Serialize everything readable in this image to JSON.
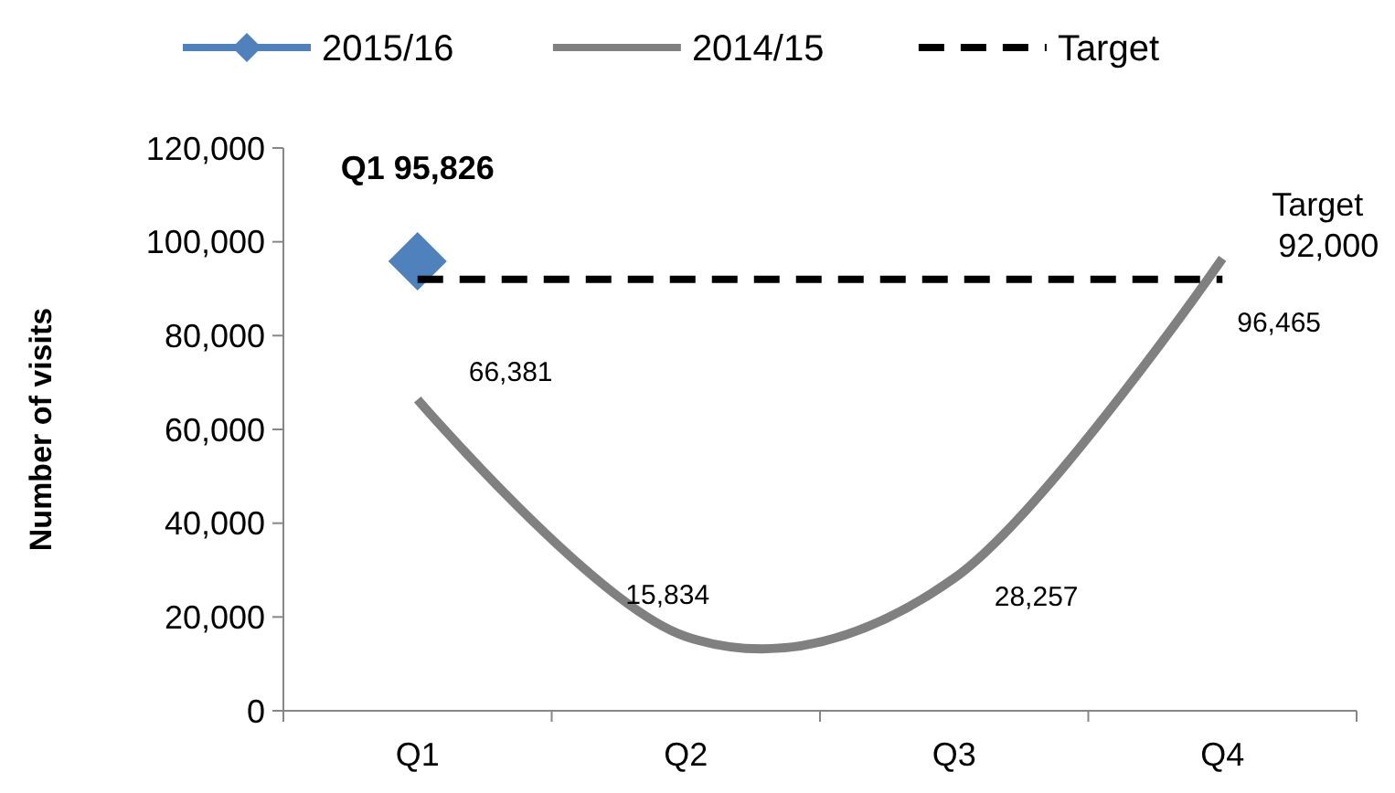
{
  "chart_data": {
    "type": "line",
    "ylabel": "Number of visits",
    "categories": [
      "Q1",
      "Q2",
      "Q3",
      "Q4"
    ],
    "ylim": [
      0,
      120000
    ],
    "yticks": [
      {
        "value": 0,
        "label": "0"
      },
      {
        "value": 20000,
        "label": "20,000"
      },
      {
        "value": 40000,
        "label": "40,000"
      },
      {
        "value": 60000,
        "label": "60,000"
      },
      {
        "value": 80000,
        "label": "80,000"
      },
      {
        "value": 100000,
        "label": "100,000"
      },
      {
        "value": 120000,
        "label": "120,000"
      }
    ],
    "grid": false,
    "legend": "top",
    "series": [
      {
        "name": "2015/16",
        "color": "#4f81bd",
        "marker": "diamond",
        "values": [
          95826,
          null,
          null,
          null
        ],
        "value_labels": [
          "Q1 95,826",
          null,
          null,
          null
        ]
      },
      {
        "name": "2014/15",
        "color": "#808080",
        "marker": "none",
        "values": [
          66381,
          15834,
          28257,
          96465
        ],
        "value_labels": [
          "66,381",
          "15,834",
          "28,257",
          "96,465"
        ]
      },
      {
        "name": "Target",
        "color": "#000000",
        "marker": "none",
        "line_style": "dashed",
        "values": [
          92000,
          92000,
          92000,
          92000
        ],
        "value_labels": [
          null,
          null,
          null,
          "Target 92,000"
        ]
      }
    ]
  }
}
